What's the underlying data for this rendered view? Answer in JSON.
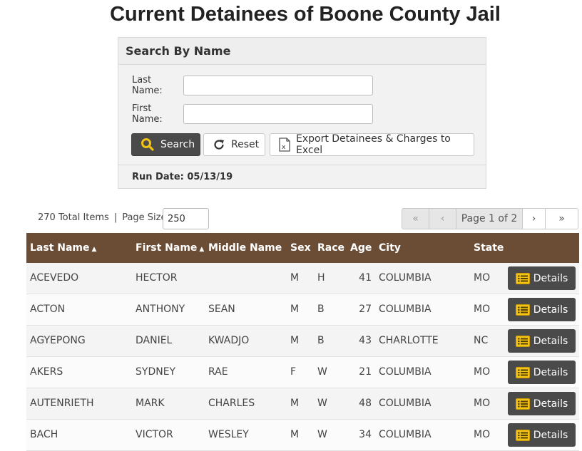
{
  "page_title": "Current Detainees of Boone County Jail",
  "search": {
    "header": "Search By Name",
    "last_name_label": "Last Name:",
    "last_name_value": "",
    "first_name_label": "First Name:",
    "first_name_value": "",
    "search_label": "Search",
    "reset_label": "Reset",
    "export_label": "Export Detainees & Charges to Excel",
    "run_date": "Run Date: 05/13/19"
  },
  "list_info": {
    "total_items": "270 Total Items",
    "separator": "|",
    "page_size_label": "Page Size",
    "page_size_value": "250"
  },
  "pager": {
    "first": "«",
    "prev": "‹",
    "label": "Page 1 of 2",
    "next": "›",
    "last": "»"
  },
  "table": {
    "columns": {
      "last_name": "Last Name",
      "first_name": "First Name",
      "middle_name": "Middle Name",
      "sex": "Sex",
      "race": "Race",
      "age": "Age",
      "city": "City",
      "state": "State"
    },
    "sort_indicator": "▲",
    "details_label": "Details",
    "rows": [
      {
        "last": "ACEVEDO",
        "first": "HECTOR",
        "middle": "",
        "sex": "M",
        "race": "H",
        "age": "41",
        "city": "COLUMBIA",
        "state": "MO"
      },
      {
        "last": "ACTON",
        "first": "ANTHONY",
        "middle": "SEAN",
        "sex": "M",
        "race": "B",
        "age": "27",
        "city": "COLUMBIA",
        "state": "MO"
      },
      {
        "last": "AGYEPONG",
        "first": "DANIEL",
        "middle": "KWADJO",
        "sex": "M",
        "race": "B",
        "age": "43",
        "city": "CHARLOTTE",
        "state": "NC"
      },
      {
        "last": "AKERS",
        "first": "SYDNEY",
        "middle": "RAE",
        "sex": "F",
        "race": "W",
        "age": "21",
        "city": "COLUMBIA",
        "state": "MO"
      },
      {
        "last": "AUTENRIETH",
        "first": "MARK",
        "middle": "CHARLES",
        "sex": "M",
        "race": "W",
        "age": "48",
        "city": "COLUMBIA",
        "state": "MO"
      },
      {
        "last": "BACH",
        "first": "VICTOR",
        "middle": "WESLEY",
        "sex": "M",
        "race": "W",
        "age": "34",
        "city": "COLUMBIA",
        "state": "MO"
      }
    ]
  },
  "colors": {
    "header_brown": "#6b4d35",
    "button_dark": "#4a4a4a",
    "accent_yellow": "#f3c316"
  },
  "icons": {
    "search": "magnifier-icon",
    "reset": "refresh-icon",
    "export": "excel-file-icon",
    "details": "list-icon"
  }
}
